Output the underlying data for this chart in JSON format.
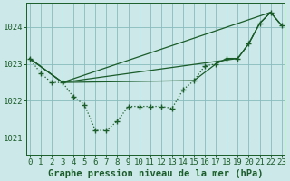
{
  "title": "Graphe pression niveau de la mer (hPa)",
  "bg_color": "#cce8e8",
  "plot_bg_color": "#cce8e8",
  "grid_color": "#88bbbb",
  "line_color": "#1a5c2a",
  "ylim": [
    1020.55,
    1024.65
  ],
  "xlim": [
    -0.3,
    23.3
  ],
  "yticks": [
    1021,
    1022,
    1023,
    1024
  ],
  "xticks": [
    0,
    1,
    2,
    3,
    4,
    5,
    6,
    7,
    8,
    9,
    10,
    11,
    12,
    13,
    14,
    15,
    16,
    17,
    18,
    19,
    20,
    21,
    22,
    23
  ],
  "curve_main_x": [
    0,
    1,
    2,
    3,
    4,
    5,
    6,
    7,
    8,
    9,
    10,
    11,
    12,
    13,
    14,
    15,
    16,
    17,
    18,
    19,
    20,
    21,
    22,
    23
  ],
  "curve_main_y": [
    1023.15,
    1022.75,
    1022.5,
    1022.5,
    1022.1,
    1021.9,
    1021.2,
    1021.2,
    1021.45,
    1021.85,
    1021.85,
    1021.85,
    1021.85,
    1021.8,
    1022.3,
    1022.55,
    1022.95,
    1023.0,
    1023.15,
    1023.15,
    1023.55,
    1024.1,
    1024.4,
    1024.05
  ],
  "curve_line1_x": [
    0,
    3,
    22
  ],
  "curve_line1_y": [
    1023.15,
    1022.5,
    1024.4
  ],
  "curve_line2_x": [
    0,
    3,
    19,
    20,
    21,
    22,
    23
  ],
  "curve_line2_y": [
    1023.15,
    1022.5,
    1023.15,
    1023.55,
    1024.1,
    1024.4,
    1024.05
  ],
  "curve_line3_x": [
    0,
    3,
    15,
    17,
    18,
    19,
    20,
    21,
    22,
    23
  ],
  "curve_line3_y": [
    1023.15,
    1022.5,
    1022.55,
    1023.0,
    1023.15,
    1023.15,
    1023.55,
    1024.1,
    1024.4,
    1024.05
  ],
  "tick_fontsize": 6.5,
  "label_fontsize": 7.5
}
